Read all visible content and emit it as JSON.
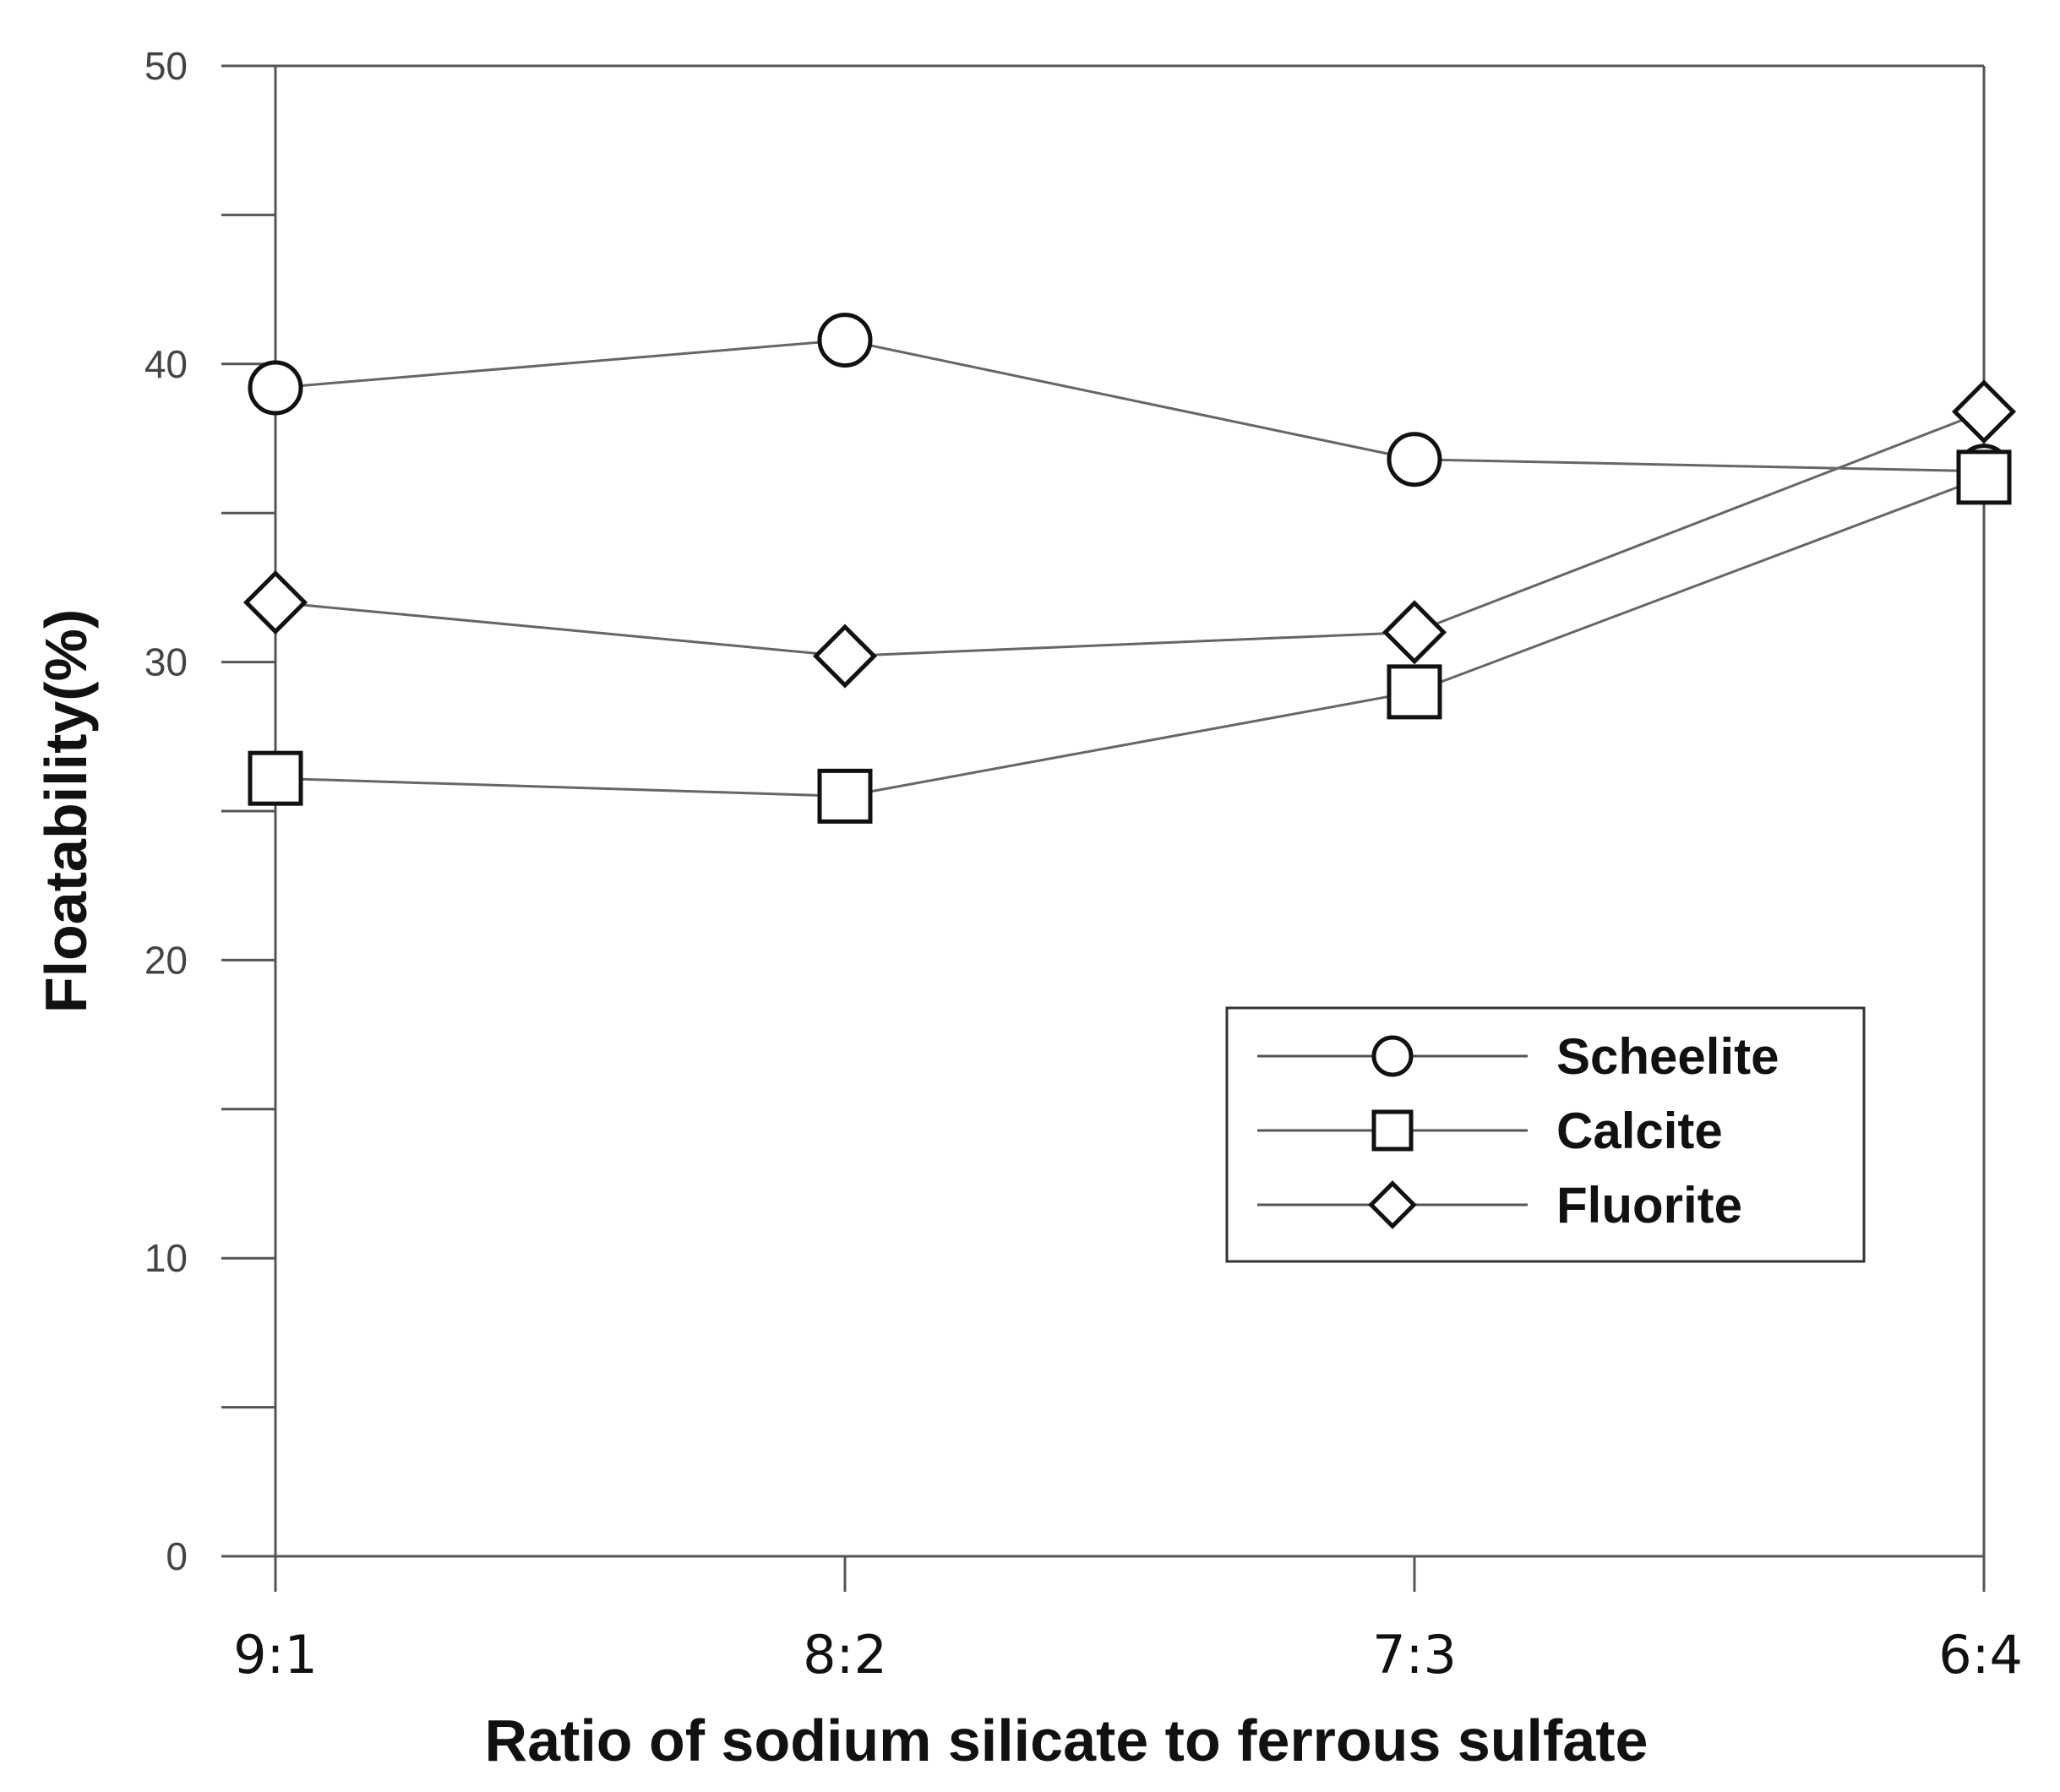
{
  "chart_data": {
    "type": "line",
    "title": "",
    "xlabel": "Ratio of sodium silicate to ferrous sulfate",
    "ylabel": "Floatability(%)",
    "categories": [
      "9:1",
      "8:2",
      "7:3",
      "6:4"
    ],
    "ylim": [
      0,
      50
    ],
    "yticks": [
      0,
      10,
      20,
      30,
      40,
      50
    ],
    "grid": false,
    "legend_position": "lower-right",
    "series": [
      {
        "name": "Scheelite",
        "marker": "circle",
        "values": [
          39.2,
          40.8,
          36.8,
          36.4
        ]
      },
      {
        "name": "Calcite",
        "marker": "square",
        "values": [
          26.1,
          25.5,
          29.0,
          36.2
        ]
      },
      {
        "name": "Fluorite",
        "marker": "diamond",
        "values": [
          32.0,
          30.2,
          31.0,
          38.4
        ]
      }
    ]
  }
}
